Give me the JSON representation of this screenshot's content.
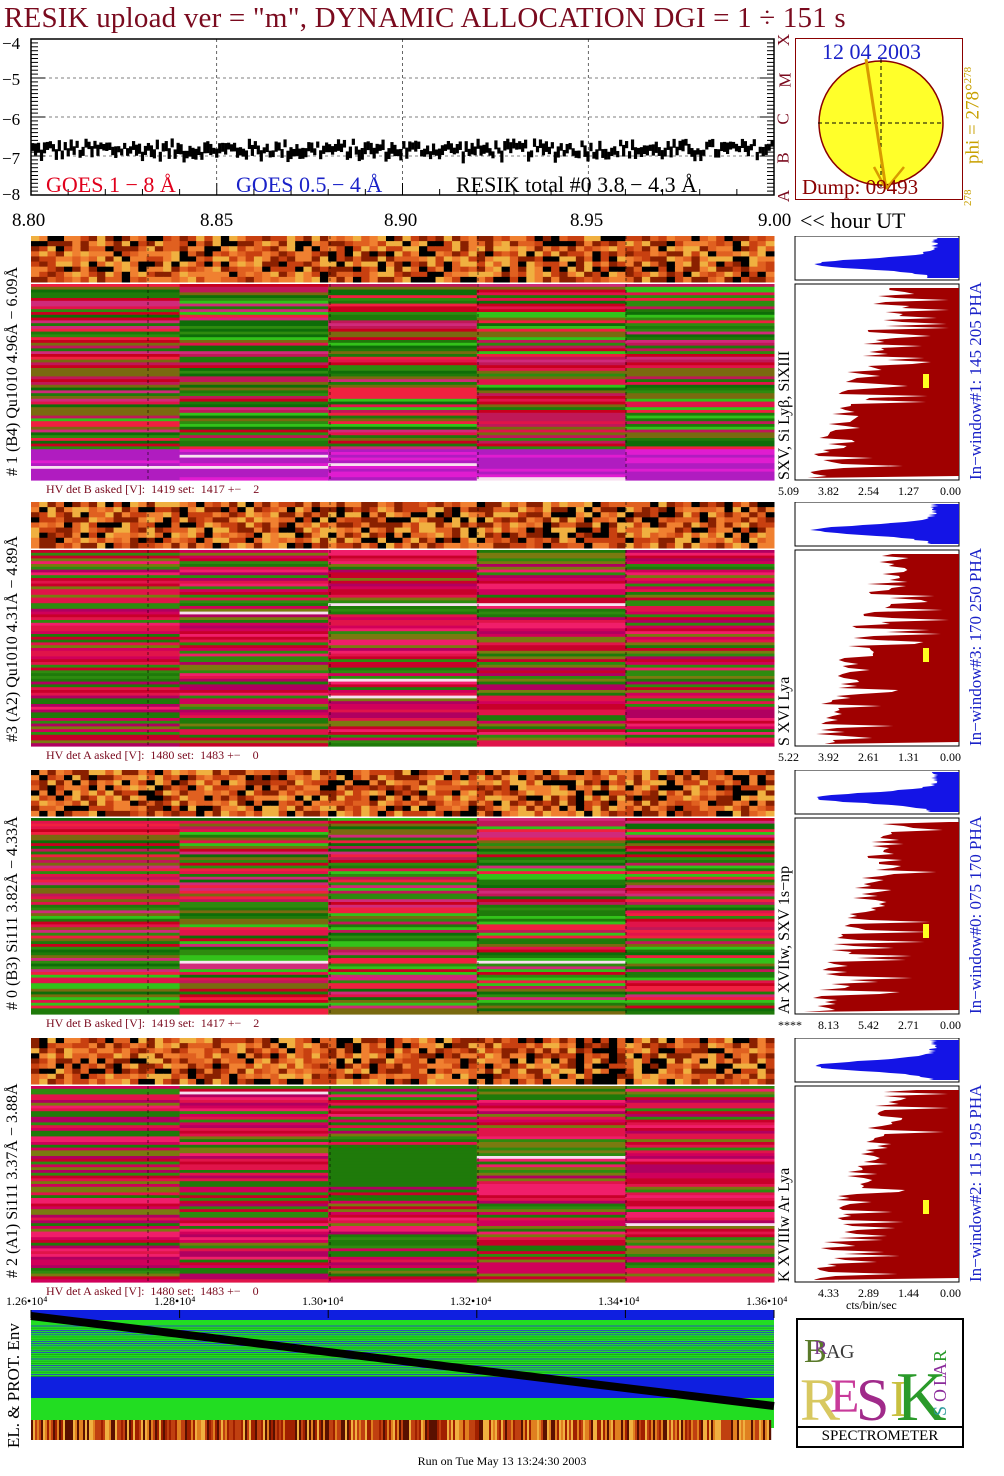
{
  "title": "RESIK upload ver = \"m\", DYNAMIC ALLOCATION  DGI =   1 ÷ 151 s",
  "goes": {
    "y_ticks": [
      "−4",
      "−5",
      "−6",
      "−7",
      "−8"
    ],
    "legend_goes_long": "GOES 1 − 8 Å",
    "legend_goes_short": "GOES 0.5 − 4 Å",
    "legend_resik": "RESIK total #0  3.8 − 4.3 Å",
    "class_letters": [
      "A",
      "B",
      "C",
      "M",
      "X"
    ],
    "x_ticks": [
      "8.80",
      "8.85",
      "8.90",
      "8.95",
      "9.00"
    ],
    "x_unit": "<< hour UT"
  },
  "sun": {
    "date": "12 04 2003",
    "phi_label": "phi = 278°",
    "phi_sup": "278",
    "phi_bottom": "278",
    "dump": "Dump: 09493"
  },
  "channels": [
    {
      "side_label": "# 1 (B4) Qu1010 4.96Å − 6.09Å",
      "hv_text": "HV det B asked [V]:  1419 set:  1417 +−    2",
      "line_label": "SXV, Si Lyβ, SiXIII",
      "window_label": "In−window#1:  145 205 PHA",
      "x_ticks": [
        "5.09",
        "3.82",
        "2.54",
        "1.27",
        "0.00"
      ]
    },
    {
      "side_label": "#3 (A2) Qu1010  4.31Å − 4.89Å",
      "hv_text": "HV det A asked [V]:  1480 set:  1483 +−    0",
      "line_label": "S XVI Lya",
      "window_label": "In−window#3:  170 250 PHA",
      "x_ticks": [
        "5.22",
        "3.92",
        "2.61",
        "1.31",
        "0.00"
      ]
    },
    {
      "side_label": "# 0 (B3) Si111  3.82Å − 4.33Å",
      "hv_text": "HV det B asked [V]:  1419 set:  1417 +−    2",
      "line_label": "Ar XVIIw,  SXV 1s−np",
      "window_label": "In−window#0:  075 170 PHA",
      "x_ticks": [
        "****",
        "8.13",
        "5.42",
        "2.71",
        "0.00"
      ]
    },
    {
      "side_label": "# 2 (A1) Si111  3.37Å − 3.88Å",
      "hv_text": "HV det A asked [V]:  1480 set:  1483 +−    0",
      "line_label": "K XVIIIw  Ar Lya",
      "window_label": "In−window#2:  115 195 PHA",
      "x_ticks": [
        "4.33",
        "2.89",
        "1.44",
        "0.00"
      ]
    }
  ],
  "pha_x_unit": "cts/bin/sec",
  "bottom": {
    "x_ticks": [
      "1.26•10⁴",
      "1.28•10⁴",
      "1.30•10⁴",
      "1.32•10⁴",
      "1.34•10⁴",
      "1.36•10⁴"
    ],
    "side_label": "EL. & PROT. Env"
  },
  "logo": {
    "letters": [
      "B",
      "R",
      "A",
      "G",
      "R",
      "E",
      "S",
      "I",
      "K",
      "S",
      "O",
      "L",
      "A",
      "R"
    ],
    "caption": "SPECTROMETER"
  },
  "footer": "Run on Tue May 13 13:24:30 2003",
  "colors": {
    "title": "#7a0a1e",
    "goes_long": "#e0001c",
    "goes_short": "#1a22c8",
    "pha_blue": "#1414e6",
    "pha_red": "#a00000",
    "sun_yellow": "#ffff2a",
    "env_green": "#22dd22",
    "env_blue": "#0f1fe0"
  },
  "chart_data": {
    "type": "line",
    "xlabel": "<< hour UT",
    "xlim": [
      8.8,
      9.0
    ],
    "ylim": [
      -8,
      -4
    ],
    "series": [
      {
        "name": "RESIK total #0  3.8 − 4.3 Å",
        "values_approx": -6.8
      }
    ]
  }
}
